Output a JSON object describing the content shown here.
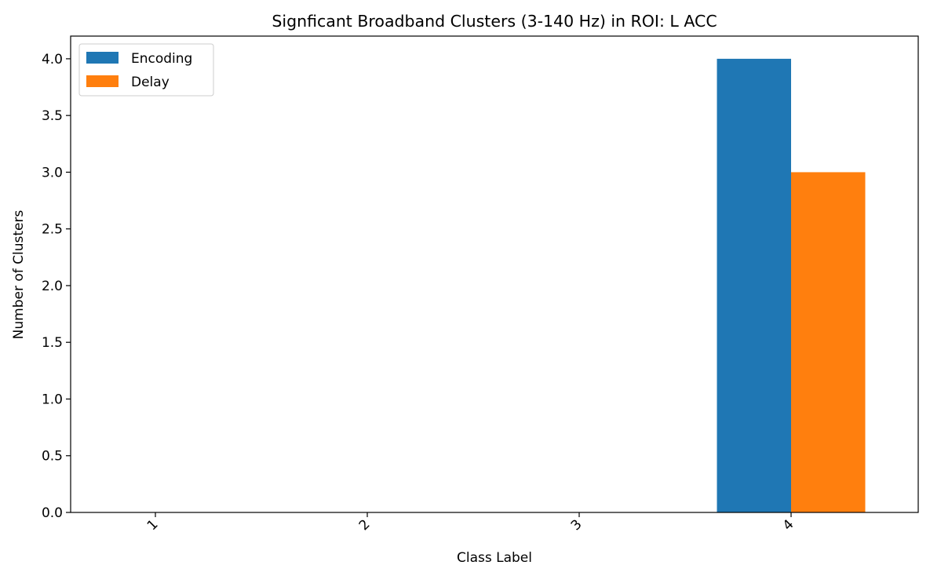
{
  "chart_data": {
    "type": "bar",
    "title": "Signficant Broadband Clusters (3-140 Hz) in ROI: L ACC",
    "xlabel": "Class Label",
    "ylabel": "Number of Clusters",
    "categories": [
      "1",
      "2",
      "3",
      "4"
    ],
    "series": [
      {
        "name": "Encoding",
        "color": "#1f77b4",
        "values": [
          0,
          0,
          0,
          4
        ]
      },
      {
        "name": "Delay",
        "color": "#ff7f0e",
        "values": [
          0,
          0,
          0,
          3
        ]
      }
    ],
    "ylim": [
      0,
      4.2
    ],
    "yticks": [
      "0.0",
      "0.5",
      "1.0",
      "1.5",
      "2.0",
      "2.5",
      "3.0",
      "3.5",
      "4.0"
    ],
    "xtick_rotation": 45,
    "legend_position": "upper-left",
    "grid": false
  }
}
